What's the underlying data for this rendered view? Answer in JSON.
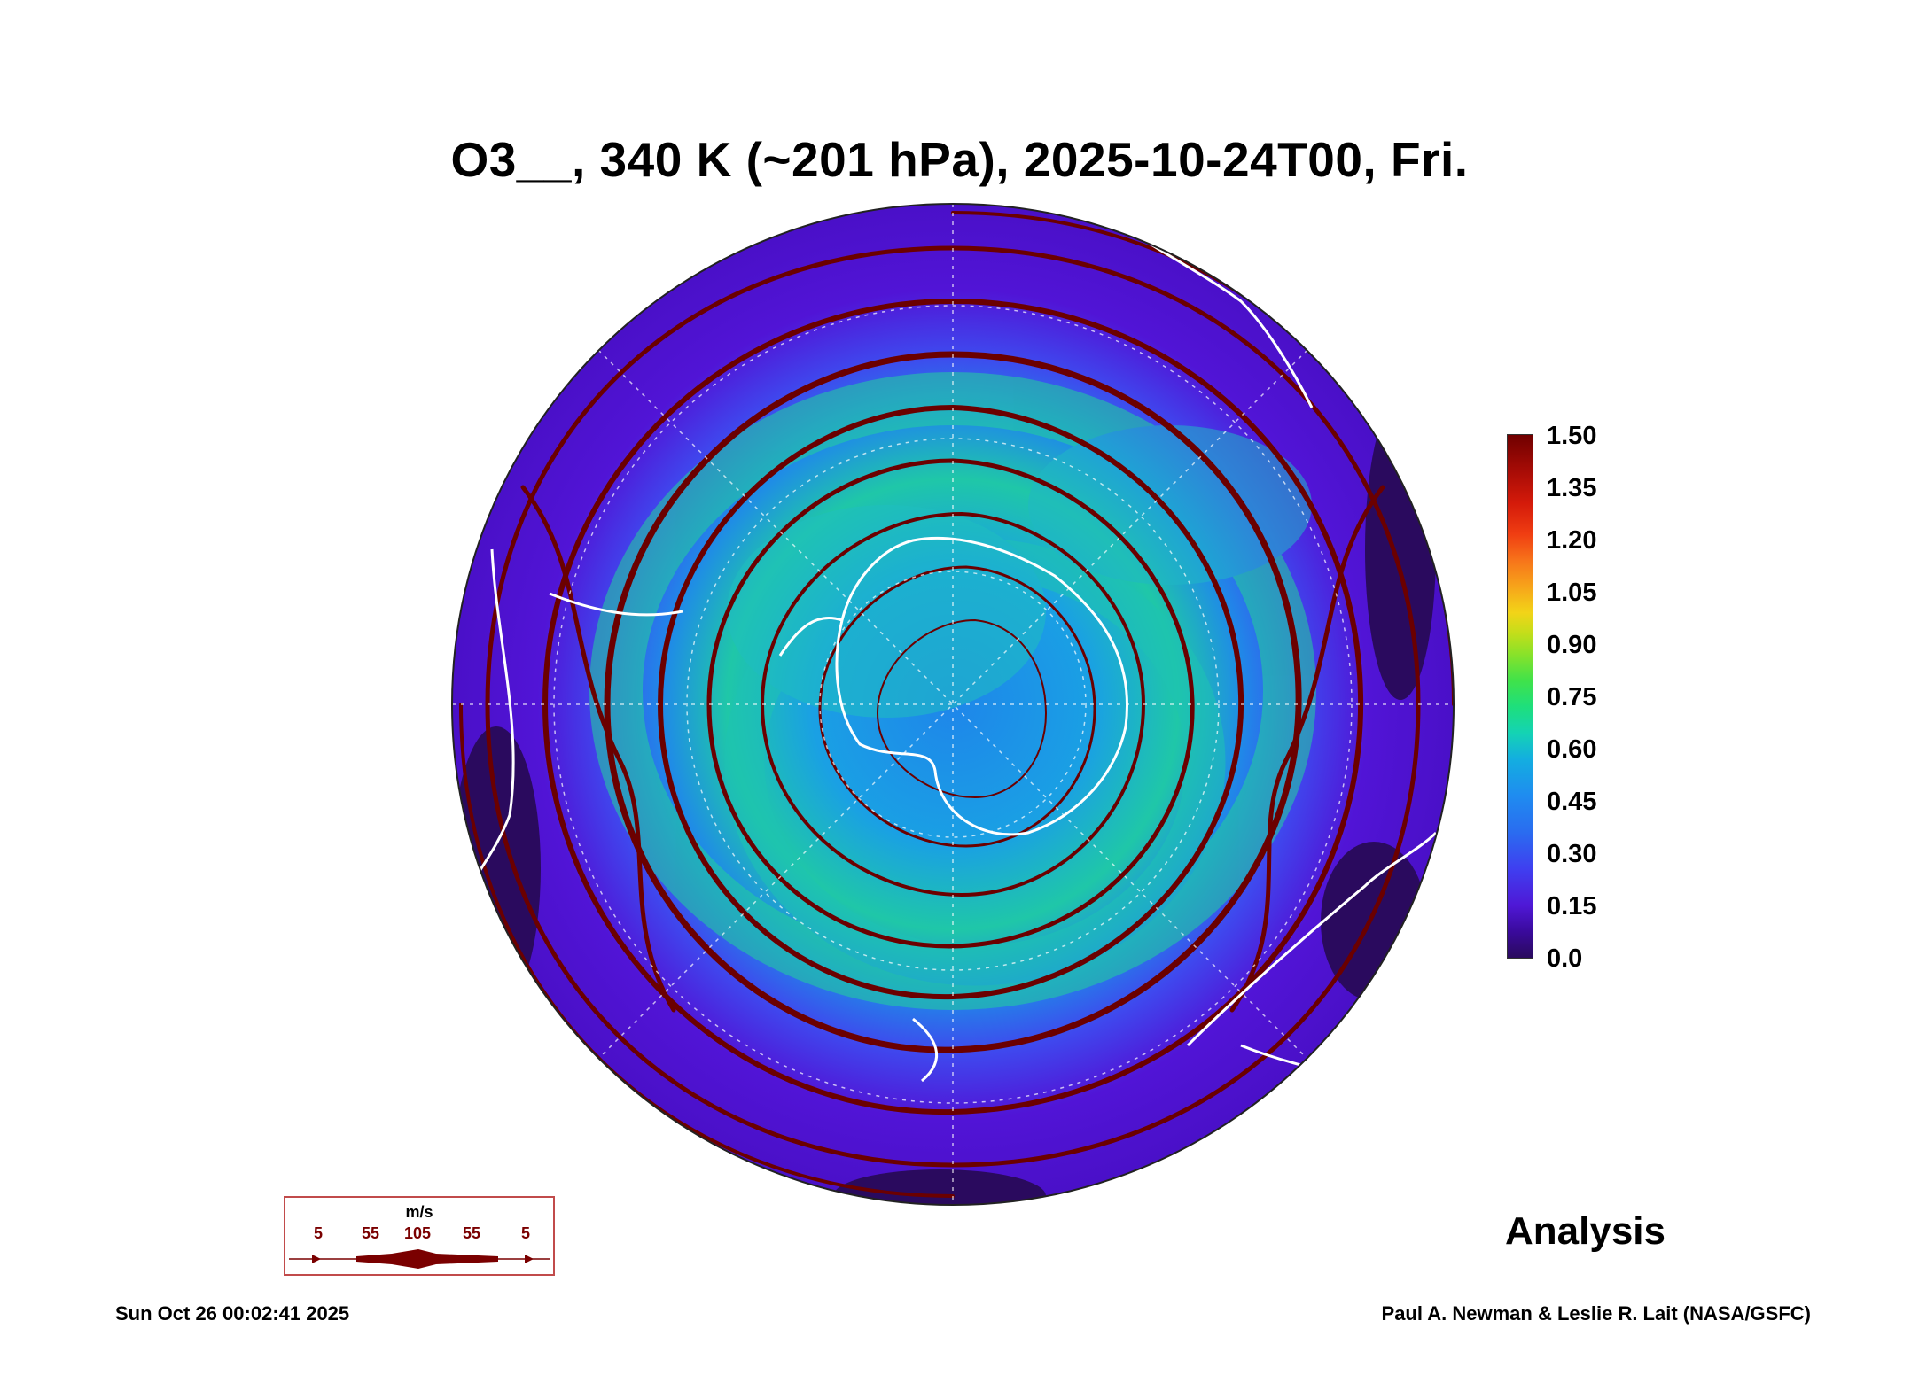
{
  "title": "O3__, 340 K (~201 hPa), 2025-10-24T00, Fri.",
  "colorbar": {
    "ticks": [
      "1.50",
      "1.35",
      "1.20",
      "1.05",
      "0.90",
      "0.75",
      "0.60",
      "0.45",
      "0.30",
      "0.15",
      "0.0"
    ],
    "colors": [
      "#2a0a5e",
      "#4f18d6",
      "#2a6cf0",
      "#13aee0",
      "#1edf7c",
      "#88e22a",
      "#f2d418",
      "#f7741a",
      "#d41a0a",
      "#700000"
    ]
  },
  "wind_legend": {
    "unit": "m/s",
    "labels": [
      "5",
      "55",
      "105",
      "55",
      "5"
    ],
    "color": "#7a0000"
  },
  "stamp": "Analysis",
  "footer": {
    "timestamp": "Sun Oct 26 00:02:41 2025",
    "credit": "Paul A. Newman & Leslie R. Lait (NASA/GSFC)"
  },
  "map": {
    "projection": "south polar stereographic",
    "field": "O3",
    "streamline_color": "#6b0000",
    "coastline_color": "#ffffff"
  }
}
